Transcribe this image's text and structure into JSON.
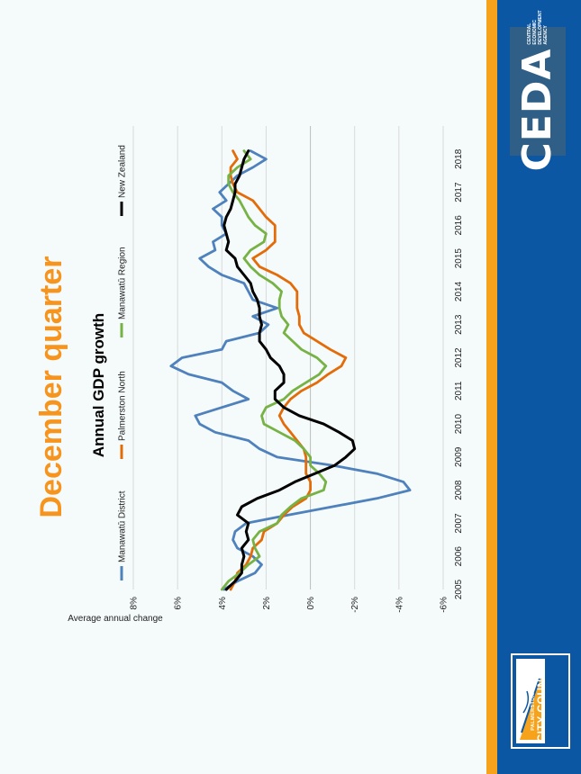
{
  "slide": {
    "heading": "December quarter",
    "heading_color": "#f7941d",
    "accent_orange": "#f7a21b",
    "brand_blue": "#0b57a4"
  },
  "logos": {
    "ceda": {
      "name": "CEDA",
      "tagline_line1": "CENTRAL ECONOMIC",
      "tagline_line2": "DEVELOPMENT AGENCY"
    },
    "council": {
      "line1": "PALMERSTON NORTH",
      "line2": "CITY COUNCIL"
    }
  },
  "chart_data": {
    "type": "line",
    "title": "Annual GDP growth",
    "xlabel": "",
    "ylabel": "Average annual change",
    "x_ticks": [
      "2005",
      "2006",
      "2007",
      "2008",
      "2009",
      "2010",
      "2011",
      "2012",
      "2013",
      "2014",
      "2015",
      "2016",
      "2017",
      "2018"
    ],
    "y_ticks": [
      "8%",
      "6%",
      "4%",
      "2%",
      "0%",
      "-2%",
      "-4%",
      "-6%"
    ],
    "ylim": [
      -6,
      8
    ],
    "xlim": [
      2005,
      2019
    ],
    "grid": true,
    "legend_position": "top",
    "series": [
      {
        "name": "Manawatū District",
        "color": "#4f81bd",
        "x": [
          2005,
          2005.25,
          2005.5,
          2005.75,
          2006,
          2006.25,
          2006.5,
          2006.75,
          2007,
          2007.25,
          2007.5,
          2007.75,
          2008,
          2008.25,
          2008.5,
          2008.75,
          2009,
          2009.25,
          2009.5,
          2009.75,
          2010,
          2010.25,
          2010.5,
          2010.75,
          2011,
          2011.25,
          2011.5,
          2011.75,
          2012,
          2012.25,
          2012.5,
          2012.75,
          2013,
          2013.25,
          2013.5,
          2013.75,
          2014,
          2014.25,
          2014.5,
          2014.75,
          2015,
          2015.25,
          2015.5,
          2015.75,
          2016,
          2016.25,
          2016.5,
          2016.75,
          2017,
          2017.25,
          2017.5,
          2017.75,
          2018,
          2018.25
        ],
        "values": [
          3.9,
          3.3,
          2.5,
          2.2,
          2.6,
          3.3,
          3.5,
          3.4,
          2.9,
          1.0,
          -1.0,
          -3.0,
          -4.5,
          -4.2,
          -3.0,
          -1.0,
          1.5,
          2.3,
          2.8,
          4.3,
          5.0,
          5.2,
          4.0,
          2.8,
          3.5,
          4.0,
          5.5,
          6.3,
          5.8,
          4.0,
          3.8,
          2.3,
          1.9,
          2.6,
          1.5,
          2.6,
          2.8,
          3.0,
          4.0,
          4.6,
          5.0,
          4.3,
          4.4,
          3.8,
          4.0,
          4.0,
          4.4,
          3.8,
          4.1,
          3.7,
          3.3,
          2.6,
          2.0,
          2.7
        ]
      },
      {
        "name": "Palmerston North",
        "color": "#e36c09",
        "x": [
          2005,
          2005.25,
          2005.5,
          2005.75,
          2006,
          2006.25,
          2006.5,
          2006.75,
          2007,
          2007.25,
          2007.5,
          2007.75,
          2008,
          2008.25,
          2008.5,
          2008.75,
          2009,
          2009.25,
          2009.5,
          2009.75,
          2010,
          2010.25,
          2010.5,
          2010.75,
          2011,
          2011.25,
          2011.5,
          2011.75,
          2012,
          2012.25,
          2012.5,
          2012.75,
          2013,
          2013.25,
          2013.5,
          2013.75,
          2014,
          2014.25,
          2014.5,
          2014.75,
          2015,
          2015.25,
          2015.5,
          2015.75,
          2016,
          2016.25,
          2016.5,
          2016.75,
          2017,
          2017.25,
          2017.5,
          2017.75,
          2018,
          2018.25
        ],
        "values": [
          3.6,
          3.4,
          3.3,
          2.9,
          2.7,
          2.6,
          2.2,
          2.1,
          1.5,
          1.2,
          0.8,
          0.2,
          0.0,
          0.0,
          0.2,
          0.2,
          0.2,
          0.3,
          0.6,
          0.9,
          1.2,
          1.4,
          1.2,
          0.9,
          0.4,
          -0.3,
          -0.8,
          -1.4,
          -1.6,
          -0.9,
          -0.3,
          0.3,
          0.5,
          0.5,
          0.6,
          0.6,
          0.6,
          0.9,
          1.5,
          2.3,
          2.6,
          2.0,
          1.6,
          1.6,
          1.6,
          2.0,
          2.3,
          2.6,
          3.3,
          3.5,
          3.6,
          3.6,
          3.3,
          3.5
        ]
      },
      {
        "name": "Manawatū Region",
        "color": "#77b245",
        "x": [
          2005,
          2005.25,
          2005.5,
          2005.75,
          2006,
          2006.25,
          2006.5,
          2006.75,
          2007,
          2007.25,
          2007.5,
          2007.75,
          2008,
          2008.25,
          2008.5,
          2008.75,
          2009,
          2009.25,
          2009.5,
          2009.75,
          2010,
          2010.25,
          2010.5,
          2010.75,
          2011,
          2011.25,
          2011.5,
          2011.75,
          2012,
          2012.25,
          2012.5,
          2012.75,
          2013,
          2013.25,
          2013.5,
          2013.75,
          2014,
          2014.25,
          2014.5,
          2014.75,
          2015,
          2015.25,
          2015.5,
          2015.75,
          2016,
          2016.25,
          2016.5,
          2016.75,
          2017,
          2017.25,
          2017.5,
          2017.75,
          2018,
          2018.25
        ],
        "values": [
          4.0,
          3.7,
          3.2,
          2.8,
          2.3,
          2.5,
          2.6,
          2.3,
          1.5,
          1.3,
          0.9,
          0.4,
          -0.6,
          -0.7,
          -0.4,
          0.0,
          0.0,
          0.3,
          0.7,
          1.4,
          2.1,
          2.2,
          2.0,
          1.2,
          0.8,
          0.2,
          -0.4,
          -0.7,
          -0.3,
          0.4,
          0.8,
          1.2,
          1.0,
          1.3,
          1.4,
          1.4,
          1.3,
          1.7,
          2.3,
          2.7,
          3.0,
          2.7,
          2.1,
          2.0,
          2.5,
          2.8,
          3.0,
          3.2,
          3.5,
          3.7,
          3.7,
          3.3,
          2.7,
          3.0
        ]
      },
      {
        "name": "New Zealand",
        "color": "#000000",
        "x": [
          2005,
          2005.25,
          2005.5,
          2005.75,
          2006,
          2006.25,
          2006.5,
          2006.75,
          2007,
          2007.25,
          2007.5,
          2007.75,
          2008,
          2008.25,
          2008.5,
          2008.75,
          2009,
          2009.25,
          2009.5,
          2009.75,
          2010,
          2010.25,
          2010.5,
          2010.75,
          2011,
          2011.25,
          2011.5,
          2011.75,
          2012,
          2012.25,
          2012.5,
          2012.75,
          2013,
          2013.25,
          2013.5,
          2013.75,
          2014,
          2014.25,
          2014.5,
          2014.75,
          2015,
          2015.25,
          2015.5,
          2015.75,
          2016,
          2016.25,
          2016.5,
          2016.75,
          2017,
          2017.25,
          2017.5,
          2017.75,
          2018,
          2018.25
        ],
        "values": [
          3.8,
          3.4,
          3.1,
          3.1,
          3.0,
          3.1,
          2.8,
          2.9,
          2.8,
          3.3,
          3.1,
          2.4,
          1.4,
          0.7,
          -0.2,
          -1.1,
          -1.6,
          -2.0,
          -1.9,
          -1.3,
          -0.6,
          0.5,
          1.2,
          1.6,
          1.6,
          1.2,
          1.2,
          1.4,
          1.8,
          2.0,
          2.3,
          2.3,
          2.2,
          2.3,
          2.3,
          2.4,
          2.6,
          2.7,
          3.0,
          3.3,
          3.4,
          3.8,
          3.7,
          3.8,
          3.9,
          3.8,
          3.6,
          3.5,
          3.4,
          3.4,
          3.2,
          3.1,
          3.0,
          2.8
        ]
      }
    ]
  }
}
